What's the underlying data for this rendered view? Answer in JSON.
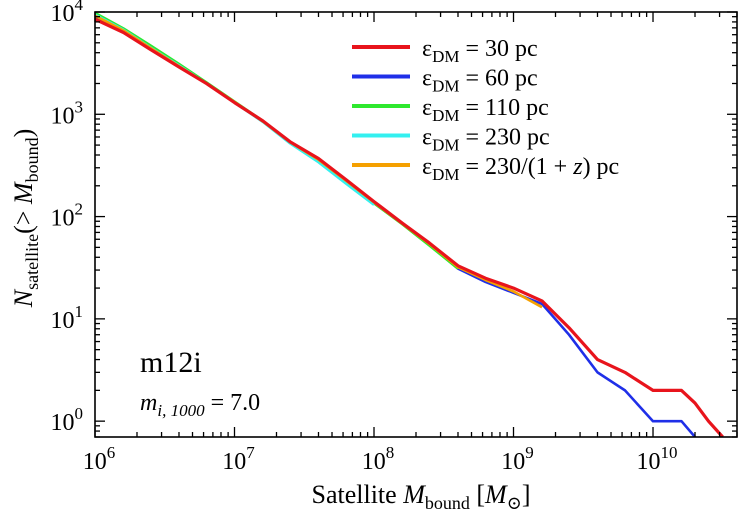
{
  "chart_data": {
    "type": "line",
    "xscale": "log",
    "yscale": "log",
    "xlim": [
      1000000,
      40000000000
    ],
    "ylim": [
      0.7,
      10000
    ],
    "x_ticks": [
      {
        "value": 1000000,
        "base": "10",
        "exp": "6"
      },
      {
        "value": 10000000,
        "base": "10",
        "exp": "7"
      },
      {
        "value": 100000000,
        "base": "10",
        "exp": "8"
      },
      {
        "value": 1000000000,
        "base": "10",
        "exp": "9"
      },
      {
        "value": 10000000000,
        "base": "10",
        "exp": "10"
      }
    ],
    "y_ticks": [
      {
        "value": 1,
        "base": "10",
        "exp": "0"
      },
      {
        "value": 10,
        "base": "10",
        "exp": "1"
      },
      {
        "value": 100,
        "base": "10",
        "exp": "2"
      },
      {
        "value": 1000,
        "base": "10",
        "exp": "3"
      },
      {
        "value": 10000,
        "base": "10",
        "exp": "4"
      }
    ],
    "xlabel": {
      "prefix": "Satellite ",
      "var": "M",
      "sub": "bound",
      "unit_open": " [",
      "unit_var": "M",
      "unit_sub": "⊙",
      "unit_close": "]"
    },
    "ylabel": {
      "var": "N",
      "sub": "satellite",
      "mid": "(> ",
      "var2": "M",
      "sub2": "bound",
      "close": ")"
    },
    "legend_position": "top-right",
    "annotation": {
      "label": "m12i",
      "param_var": "m",
      "param_sub": "i, 1000",
      "param_eq": " = 7.0"
    },
    "series": [
      {
        "legend": {
          "sym": "ε",
          "sub": "DM",
          "eq": " = 30 pc"
        },
        "color": "#e8141c",
        "x": [
          1000000,
          1600000,
          2500000,
          4000000,
          6300000,
          10000000,
          16000000,
          25000000,
          40000000,
          63000000,
          100000000,
          160000000,
          250000000,
          400000000,
          630000000,
          1000000000,
          1600000000,
          2500000000,
          4000000000,
          6300000000,
          10000000000,
          16000000000,
          20000000000,
          25000000000,
          31600000000
        ],
        "y": [
          8500,
          6300,
          4300,
          2900,
          2000,
          1300,
          860,
          540,
          370,
          230,
          140,
          86,
          55,
          33,
          25,
          20,
          15,
          8.2,
          4,
          3,
          2,
          2,
          1.5,
          1,
          0.7
        ]
      },
      {
        "legend": {
          "sym": "ε",
          "sub": "DM",
          "eq": " = 60 pc"
        },
        "color": "#1f2fe8",
        "x": [
          1000000,
          1600000,
          2500000,
          4000000,
          6300000,
          10000000,
          16000000,
          25000000,
          40000000,
          63000000,
          100000000,
          160000000,
          250000000,
          400000000,
          630000000,
          1000000000,
          1600000000,
          2500000000,
          4000000000,
          6300000000,
          10000000000,
          16000000000,
          20000000000
        ],
        "y": [
          9000,
          6500,
          4400,
          2950,
          2000,
          1300,
          850,
          530,
          360,
          220,
          135,
          85,
          53,
          31,
          23,
          18,
          14,
          7,
          3,
          2,
          1,
          1,
          0.7
        ]
      },
      {
        "legend": {
          "sym": "ε",
          "sub": "DM",
          "eq": " = 110 pc"
        },
        "color": "#2ee82e",
        "x": [
          1000000,
          1600000,
          2500000,
          4000000,
          6300000,
          10000000,
          16000000,
          25000000,
          40000000,
          63000000,
          100000000,
          160000000,
          250000000,
          400000000
        ],
        "y": [
          9800,
          6900,
          4700,
          3100,
          2050,
          1330,
          860,
          530,
          350,
          215,
          135,
          84,
          52,
          31
        ]
      },
      {
        "legend": {
          "sym": "ε",
          "sub": "DM",
          "eq": " = 230 pc"
        },
        "color": "#33f0f0",
        "x": [
          1000000,
          1600000,
          2500000,
          4000000,
          6300000,
          10000000,
          16000000,
          25000000,
          40000000,
          63000000,
          100000000
        ],
        "y": [
          9400,
          6700,
          4500,
          3000,
          2000,
          1300,
          840,
          520,
          340,
          210,
          130
        ]
      },
      {
        "legend": {
          "sym": "ε",
          "sub": "DM",
          "eq": " = 230/(1 + ",
          "var": "z",
          "tail": ") pc"
        },
        "color": "#f5a000",
        "x": [
          1000000,
          1600000,
          2500000,
          4000000,
          6300000,
          10000000,
          16000000,
          25000000,
          40000000,
          63000000,
          100000000,
          160000000,
          250000000,
          400000000,
          630000000,
          1000000000,
          1600000000
        ],
        "y": [
          9200,
          6600,
          4450,
          2950,
          2000,
          1320,
          850,
          535,
          360,
          225,
          138,
          85,
          54,
          32,
          24,
          18.5,
          13
        ]
      }
    ]
  }
}
